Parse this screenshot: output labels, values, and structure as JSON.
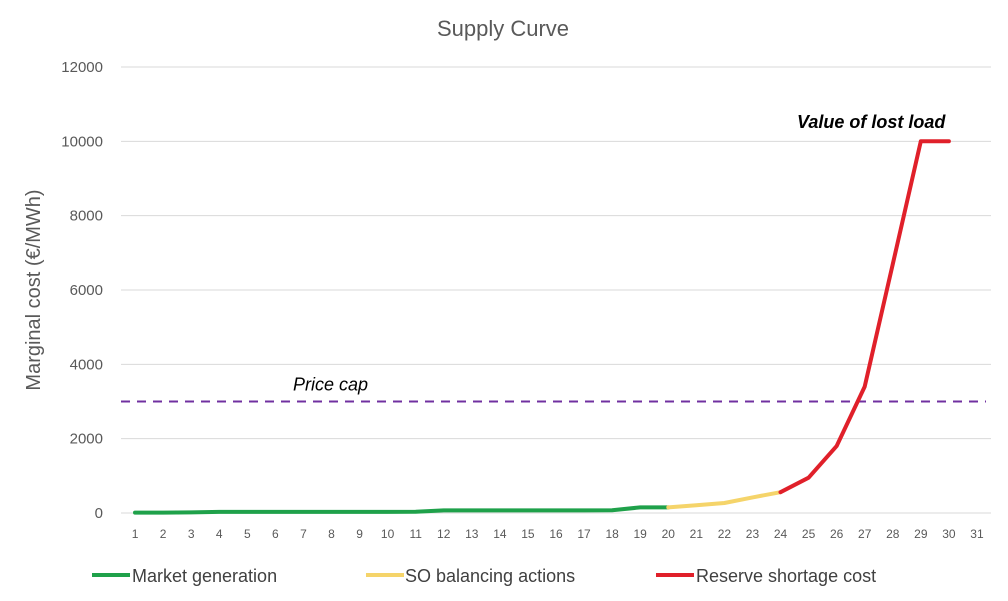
{
  "chart_data": {
    "type": "line",
    "title": "Supply Curve",
    "xlabel": "",
    "ylabel": "Marginal cost (€/MWh)",
    "x": [
      1,
      2,
      3,
      4,
      5,
      6,
      7,
      8,
      9,
      10,
      11,
      12,
      13,
      14,
      15,
      16,
      17,
      18,
      19,
      20,
      21,
      22,
      23,
      24,
      25,
      26,
      27,
      28,
      29,
      30,
      31
    ],
    "ylim": [
      0,
      12000
    ],
    "yticks": [
      0,
      2000,
      4000,
      6000,
      8000,
      10000,
      12000
    ],
    "grid": true,
    "legend_position": "bottom",
    "series": [
      {
        "name": "Market generation",
        "color": "#1fa14a",
        "x": [
          1,
          2,
          3,
          4,
          5,
          6,
          7,
          8,
          9,
          10,
          11,
          12,
          13,
          14,
          15,
          16,
          17,
          18,
          19,
          20
        ],
        "values": [
          10,
          10,
          15,
          30,
          30,
          30,
          30,
          30,
          30,
          30,
          35,
          70,
          70,
          70,
          70,
          70,
          70,
          75,
          150,
          150
        ]
      },
      {
        "name": "SO balancing actions",
        "color": "#f5d46a",
        "x": [
          20,
          21,
          22,
          23,
          24
        ],
        "values": [
          150,
          210,
          270,
          420,
          560
        ]
      },
      {
        "name": "Reserve shortage cost",
        "color": "#e0202a",
        "x": [
          24,
          25,
          26,
          27,
          28,
          29,
          30
        ],
        "values": [
          560,
          950,
          1800,
          3400,
          6700,
          10000,
          10000
        ]
      }
    ],
    "reference_lines": [
      {
        "label": "Price cap",
        "value": 3000,
        "color": "#7030a0",
        "style": "dashed"
      }
    ],
    "annotations": [
      {
        "text": "Value of lost load",
        "x": 28.5,
        "y": 10500
      }
    ]
  }
}
